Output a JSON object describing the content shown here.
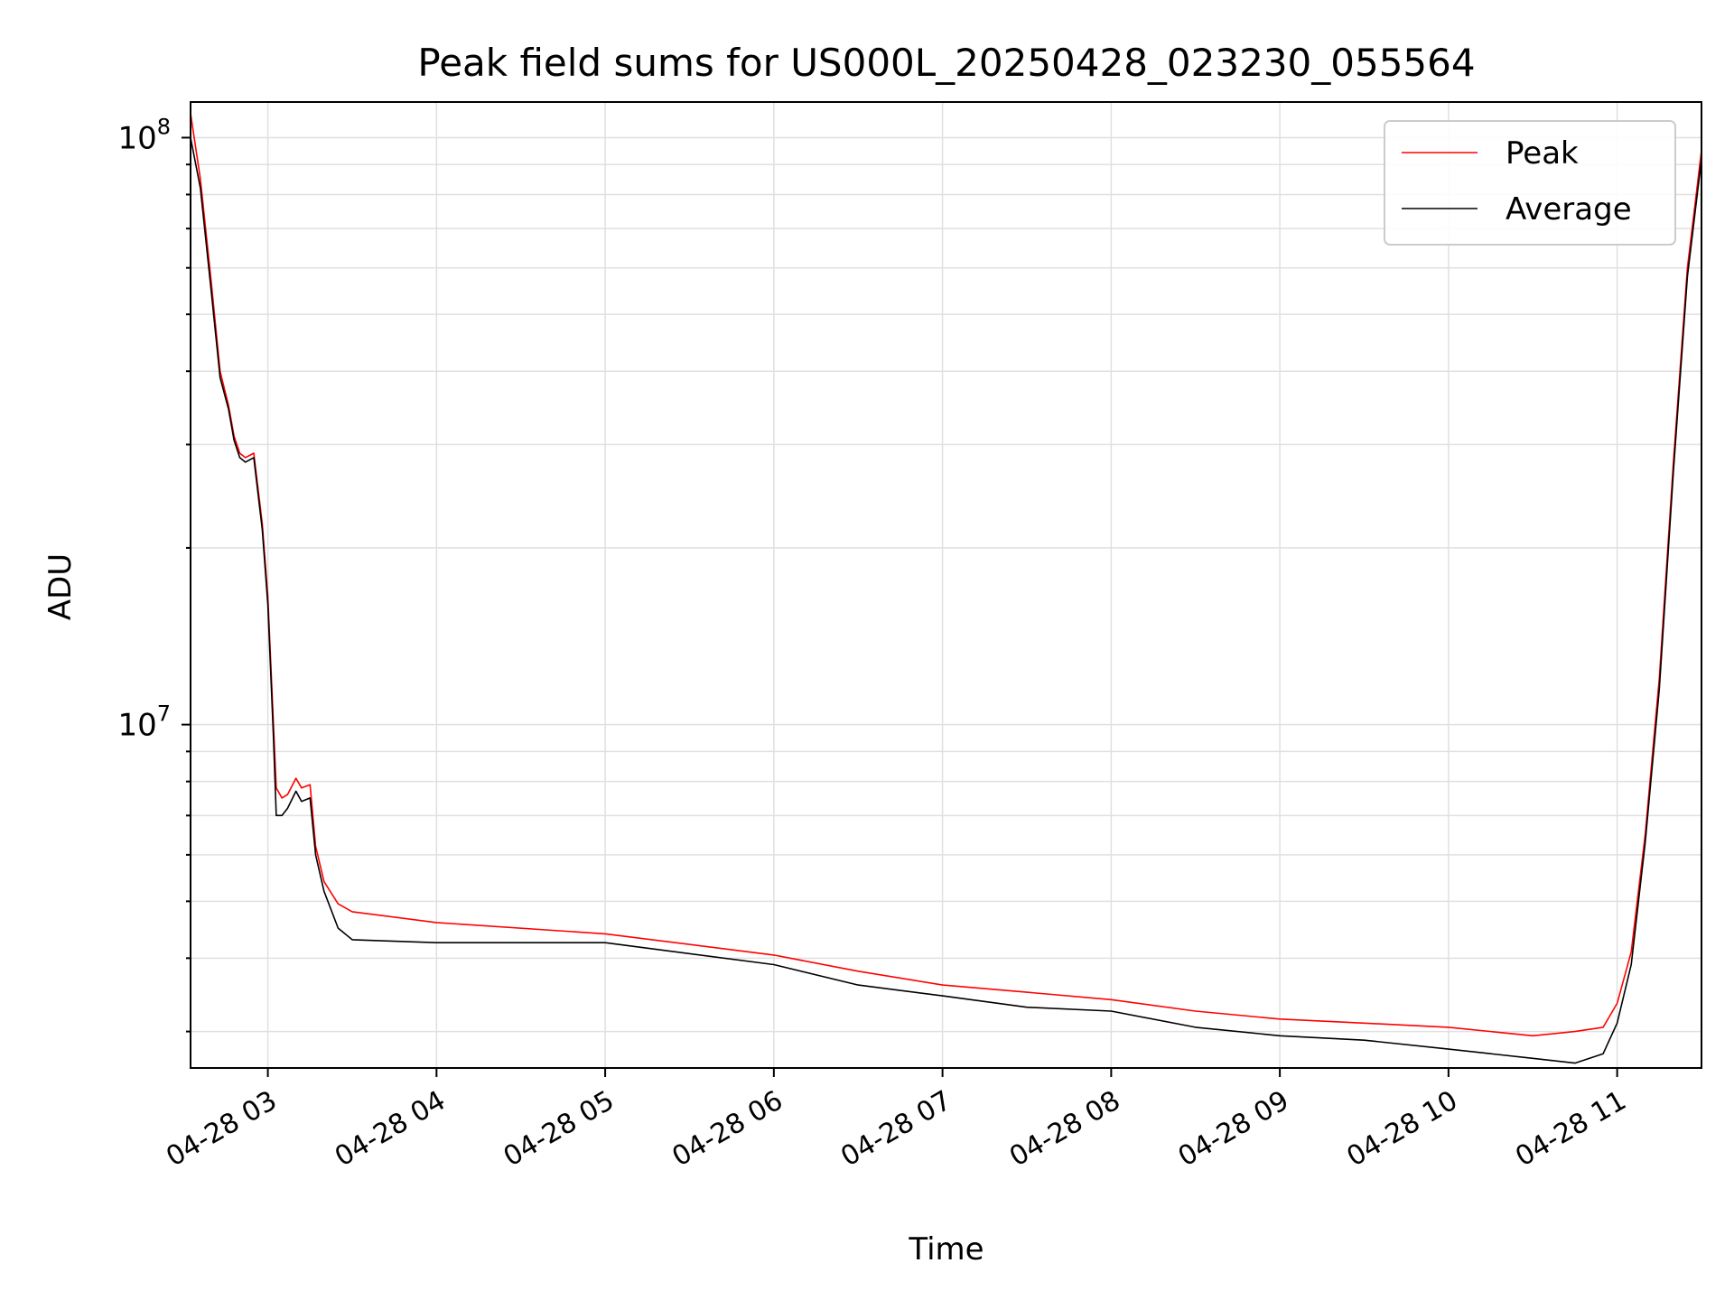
{
  "chart_data": {
    "type": "line",
    "title": "Peak field sums for US000L_20250428_023230_055564",
    "xlabel": "Time",
    "ylabel": "ADU",
    "yscale": "log",
    "ylim": [
      2600000,
      115000000
    ],
    "xlim": [
      "2025-04-28 02:32:30",
      "2025-04-28 11:30:00"
    ],
    "grid": true,
    "legend_position": "top-right",
    "x_ticks": [
      {
        "time": "2025-04-28 03:00",
        "label": "04-28 03"
      },
      {
        "time": "2025-04-28 04:00",
        "label": "04-28 04"
      },
      {
        "time": "2025-04-28 05:00",
        "label": "04-28 05"
      },
      {
        "time": "2025-04-28 06:00",
        "label": "04-28 06"
      },
      {
        "time": "2025-04-28 07:00",
        "label": "04-28 07"
      },
      {
        "time": "2025-04-28 08:00",
        "label": "04-28 08"
      },
      {
        "time": "2025-04-28 09:00",
        "label": "04-28 09"
      },
      {
        "time": "2025-04-28 10:00",
        "label": "04-28 10"
      },
      {
        "time": "2025-04-28 11:00",
        "label": "04-28 11"
      }
    ],
    "y_ticks": [
      {
        "value": 10000000,
        "base": "10",
        "exp": "7"
      },
      {
        "value": 100000000,
        "base": "10",
        "exp": "8"
      }
    ],
    "series": [
      {
        "name": "Peak",
        "color": "#ff0000",
        "x": [
          "2025-04-28 02:32:30",
          "2025-04-28 02:36",
          "2025-04-28 02:40",
          "2025-04-28 02:43",
          "2025-04-28 02:46",
          "2025-04-28 02:48",
          "2025-04-28 02:50",
          "2025-04-28 02:52",
          "2025-04-28 02:55",
          "2025-04-28 02:58",
          "2025-04-28 03:00",
          "2025-04-28 03:02",
          "2025-04-28 03:03",
          "2025-04-28 03:05",
          "2025-04-28 03:07",
          "2025-04-28 03:10",
          "2025-04-28 03:12",
          "2025-04-28 03:15",
          "2025-04-28 03:17",
          "2025-04-28 03:20",
          "2025-04-28 03:25",
          "2025-04-28 03:30",
          "2025-04-28 04:00",
          "2025-04-28 05:00",
          "2025-04-28 06:00",
          "2025-04-28 06:30",
          "2025-04-28 07:00",
          "2025-04-28 07:30",
          "2025-04-28 08:00",
          "2025-04-28 08:30",
          "2025-04-28 09:00",
          "2025-04-28 09:30",
          "2025-04-28 10:00",
          "2025-04-28 10:30",
          "2025-04-28 10:45",
          "2025-04-28 10:55",
          "2025-04-28 11:00",
          "2025-04-28 11:05",
          "2025-04-28 11:10",
          "2025-04-28 11:15",
          "2025-04-28 11:20",
          "2025-04-28 11:25",
          "2025-04-28 11:30"
        ],
        "y": [
          110000000,
          85000000,
          56000000,
          40000000,
          35000000,
          31000000,
          29000000,
          28500000,
          29000000,
          22000000,
          16500000,
          10000000,
          7800000,
          7500000,
          7600000,
          8100000,
          7800000,
          7900000,
          6200000,
          5400000,
          4950000,
          4800000,
          4600000,
          4400000,
          4050000,
          3800000,
          3600000,
          3500000,
          3400000,
          3250000,
          3150000,
          3100000,
          3050000,
          2950000,
          3000000,
          3050000,
          3350000,
          4100000,
          6500000,
          12000000,
          28000000,
          60000000,
          95000000
        ]
      },
      {
        "name": "Average",
        "color": "#000000",
        "x": [
          "2025-04-28 02:32:30",
          "2025-04-28 02:36",
          "2025-04-28 02:40",
          "2025-04-28 02:43",
          "2025-04-28 02:46",
          "2025-04-28 02:48",
          "2025-04-28 02:50",
          "2025-04-28 02:52",
          "2025-04-28 02:55",
          "2025-04-28 02:58",
          "2025-04-28 03:00",
          "2025-04-28 03:02",
          "2025-04-28 03:03",
          "2025-04-28 03:05",
          "2025-04-28 03:07",
          "2025-04-28 03:10",
          "2025-04-28 03:12",
          "2025-04-28 03:15",
          "2025-04-28 03:17",
          "2025-04-28 03:20",
          "2025-04-28 03:25",
          "2025-04-28 03:30",
          "2025-04-28 04:00",
          "2025-04-28 05:00",
          "2025-04-28 06:00",
          "2025-04-28 06:30",
          "2025-04-28 07:00",
          "2025-04-28 07:30",
          "2025-04-28 08:00",
          "2025-04-28 08:30",
          "2025-04-28 09:00",
          "2025-04-28 09:30",
          "2025-04-28 10:00",
          "2025-04-28 10:30",
          "2025-04-28 10:45",
          "2025-04-28 10:55",
          "2025-04-28 11:00",
          "2025-04-28 11:05",
          "2025-04-28 11:10",
          "2025-04-28 11:15",
          "2025-04-28 11:20",
          "2025-04-28 11:25",
          "2025-04-28 11:30"
        ],
        "y": [
          100000000,
          82000000,
          54000000,
          39000000,
          34500000,
          30500000,
          28500000,
          28000000,
          28500000,
          21500000,
          16000000,
          9500000,
          7000000,
          7000000,
          7200000,
          7700000,
          7400000,
          7500000,
          6000000,
          5200000,
          4500000,
          4300000,
          4250000,
          4250000,
          3900000,
          3600000,
          3450000,
          3300000,
          3250000,
          3050000,
          2950000,
          2900000,
          2800000,
          2700000,
          2650000,
          2750000,
          3100000,
          3900000,
          6300000,
          11500000,
          27000000,
          58000000,
          92000000
        ]
      }
    ]
  }
}
